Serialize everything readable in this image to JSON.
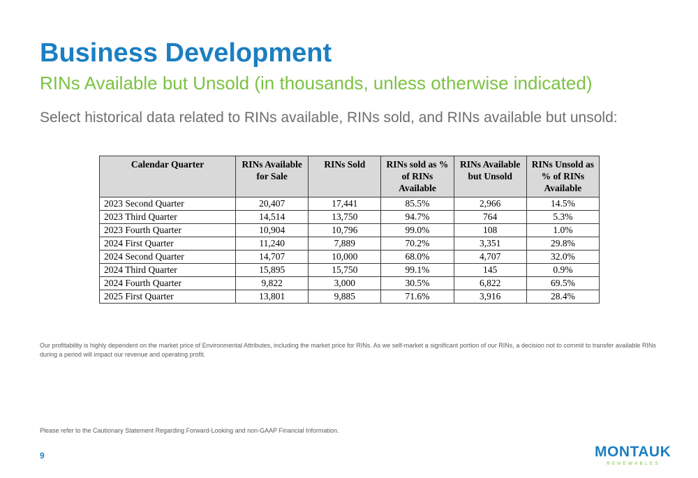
{
  "slide": {
    "title": "Business Development",
    "subtitle": "RINs Available but Unsold (in thousands, unless otherwise indicated)",
    "intro": "Select historical data related to RINs available, RINs sold, and RINs available but unsold:",
    "disclaimer": "Our profitability is highly dependent on the market price of Environmental Attributes, including the market price for RINs. As we self-market a significant portion of our RINs, a decision not to commit to transfer available RINs during a period will impact our revenue and operating profit.",
    "cautionary": "Please refer to the Cautionary Statement Regarding Forward-Looking and non-GAAP Financial Information.",
    "page_number": "9"
  },
  "logo": {
    "wordmark": "MONTAUK",
    "tagline": "RENEWABLES",
    "colors": {
      "blue": "#1b7fc1",
      "green": "#7cc242"
    }
  },
  "table": {
    "headers": [
      "Calendar Quarter",
      "RINs Available for Sale",
      "RINs Sold",
      "RINs sold as % of RINs Available",
      "RINs Available but Unsold",
      "RINs Unsold as % of RINs Available"
    ],
    "rows": [
      [
        "2023 Second Quarter",
        "20,407",
        "17,441",
        "85.5%",
        "2,966",
        "14.5%"
      ],
      [
        "2023 Third Quarter",
        "14,514",
        "13,750",
        "94.7%",
        "764",
        "5.3%"
      ],
      [
        "2023 Fourth Quarter",
        "10,904",
        "10,796",
        "99.0%",
        "108",
        "1.0%"
      ],
      [
        "2024 First Quarter",
        "11,240",
        "7,889",
        "70.2%",
        "3,351",
        "29.8%"
      ],
      [
        "2024 Second Quarter",
        "14,707",
        "10,000",
        "68.0%",
        "4,707",
        "32.0%"
      ],
      [
        "2024 Third Quarter",
        "15,895",
        "15,750",
        "99.1%",
        "145",
        "0.9%"
      ],
      [
        "2024 Fourth Quarter",
        "9,822",
        "3,000",
        "30.5%",
        "6,822",
        "69.5%"
      ],
      [
        "2025 First Quarter",
        "13,801",
        "9,885",
        "71.6%",
        "3,916",
        "28.4%"
      ]
    ]
  },
  "colors": {
    "title": "#1b7fc1",
    "subtitle": "#7cc242",
    "body_text": "#6d6e70",
    "table_header_bg": "#d9d9d9"
  }
}
